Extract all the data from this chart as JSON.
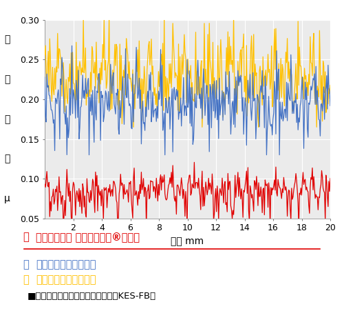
{
  "xlabel": "距離 mm",
  "ylabel_lines": [
    "摩",
    "擦",
    "係",
    "数",
    "μ"
  ],
  "xlim": [
    0,
    20
  ],
  "ylim": [
    0.05,
    0.3
  ],
  "yticks": [
    0.05,
    0.1,
    0.15,
    0.2,
    0.25,
    0.3
  ],
  "xticks": [
    2,
    4,
    6,
    8,
    10,
    12,
    14,
    16,
    18,
    20
  ],
  "red_color": "#e00000",
  "blue_color": "#4472c4",
  "yellow_color": "#FFC000",
  "plot_bg": "#ebebeb",
  "legend_red_dot": "・",
  "legend_red_label": "赤線　もっと とるとる電石®マスク",
  "legend_blue_dot": "・",
  "legend_blue_label": "青線　他社商品　比較",
  "legend_yellow_dot": "・",
  "legend_yellow_label": "黄線　自社商品　比較",
  "note_text": "■表面摩擦計測：カトーテック製（KES-FB）",
  "n_points": 400,
  "seed": 42
}
